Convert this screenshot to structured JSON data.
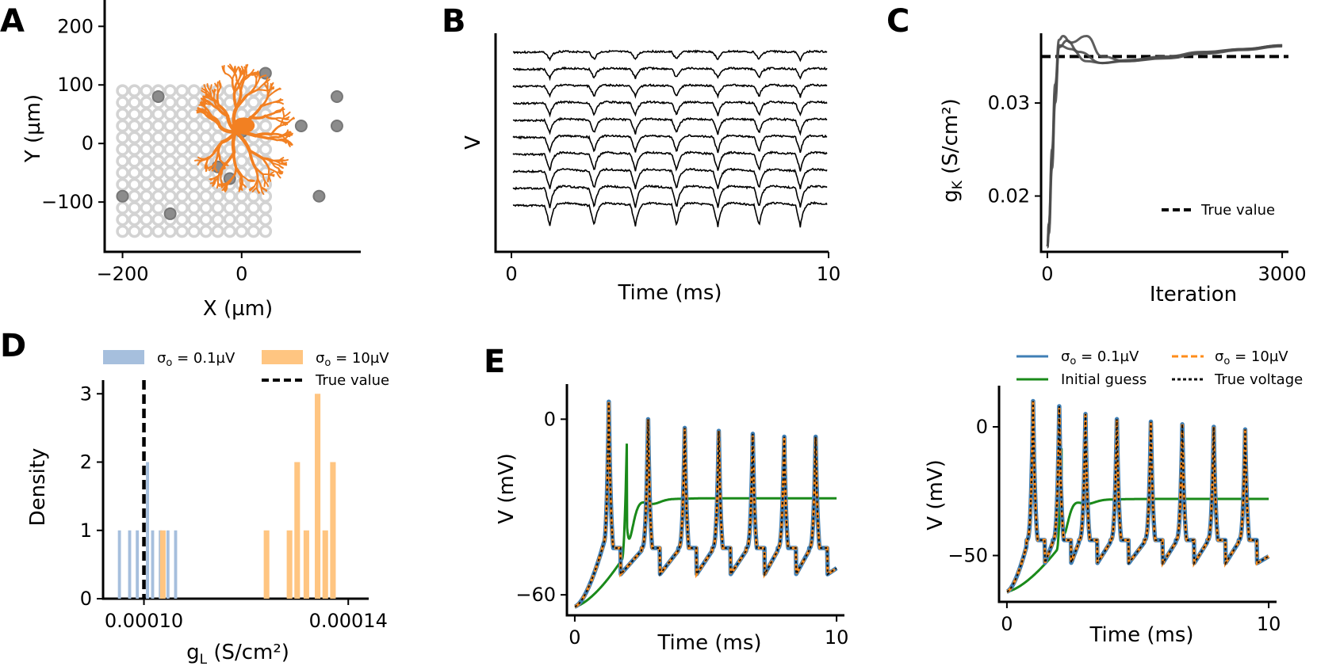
{
  "panel_letters": {
    "A": "A",
    "B": "B",
    "C": "C",
    "D": "D",
    "E": "E"
  },
  "chart_data": [
    {
      "panel": "A",
      "type": "scatter",
      "xlabel": "X (µm)",
      "ylabel": "Y (µm)",
      "xlim": [
        -230,
        200
      ],
      "ylim": [
        -185,
        245
      ],
      "xticks": [
        -200,
        0
      ],
      "xtick_labels": [
        "−200",
        "0"
      ],
      "yticks": [
        -100,
        0,
        100,
        200
      ],
      "ytick_labels": [
        "−100",
        "0",
        "100",
        "200"
      ],
      "grid": {
        "x_start": -200,
        "x_step": 20,
        "nx": 13,
        "y_start": -150,
        "y_step": 20,
        "ny": 13
      },
      "recording_sites": [
        [
          -140,
          80
        ],
        [
          40,
          120
        ],
        [
          160,
          80
        ],
        [
          100,
          30
        ],
        [
          160,
          30
        ],
        [
          -200,
          -90
        ],
        [
          -120,
          -120
        ],
        [
          -20,
          -60
        ],
        [
          130,
          -90
        ],
        [
          -40,
          -40
        ],
        [
          0,
          20
        ]
      ],
      "colors": {
        "grid_site": "#d3d3d3",
        "recording_site": "#8c8c8c",
        "neuron": "#f28022"
      },
      "neuron": "orange reconstructed dendritic morphology centered near the origin"
    },
    {
      "panel": "B",
      "type": "line",
      "xlabel": "Time (ms)",
      "ylabel": "V",
      "xlim": [
        0,
        10
      ],
      "xticks": [
        0,
        10
      ],
      "xtick_labels": [
        "0",
        "10"
      ],
      "n_traces": 10,
      "spike_times": [
        1.2,
        2.6,
        3.9,
        5.2,
        6.5,
        7.8,
        9.1
      ],
      "colors": {
        "trace": "#000000"
      }
    },
    {
      "panel": "C",
      "type": "line",
      "xlabel": "Iteration",
      "ylabel": "gK (S/cm²)",
      "ylabel_main": "g",
      "ylabel_sub": "K",
      "ylabel_unit": " (S/cm²)",
      "xlim": [
        -80,
        3080
      ],
      "ylim": [
        0.014,
        0.0375
      ],
      "xticks": [
        0,
        3000
      ],
      "xtick_labels": [
        "0",
        "3000"
      ],
      "yticks": [
        0.02,
        0.03
      ],
      "ytick_labels": [
        "0.02",
        "0.03"
      ],
      "true_value": 0.035,
      "legend": [
        "True value"
      ],
      "legend_placement": "lower-right",
      "series": [
        {
          "x": [
            0,
            20,
            60,
            100,
            150,
            250,
            400,
            700,
            1000,
            1500,
            2000,
            2500,
            3000
          ],
          "y": [
            0.0145,
            0.017,
            0.024,
            0.031,
            0.036,
            0.0367,
            0.0355,
            0.0343,
            0.0345,
            0.0348,
            0.0353,
            0.0357,
            0.0361
          ]
        },
        {
          "x": [
            0,
            20,
            60,
            100,
            150,
            200,
            300,
            500,
            700,
            1000,
            1500,
            2000,
            2500,
            3000
          ],
          "y": [
            0.0145,
            0.017,
            0.025,
            0.032,
            0.0368,
            0.0372,
            0.0365,
            0.0372,
            0.035,
            0.0345,
            0.0349,
            0.0354,
            0.0358,
            0.0362
          ]
        },
        {
          "x": [
            0,
            20,
            60,
            100,
            150,
            300,
            500,
            700,
            1000,
            1500,
            2000,
            2500,
            3000
          ],
          "y": [
            0.0145,
            0.016,
            0.023,
            0.03,
            0.0362,
            0.0358,
            0.0345,
            0.0343,
            0.0346,
            0.035,
            0.0355,
            0.0358,
            0.0362
          ]
        }
      ],
      "colors": {
        "series": "#4d4d4d",
        "true": "#000000"
      }
    },
    {
      "panel": "D",
      "type": "bar",
      "xlabel": "gL (S/cm²)",
      "xlabel_main": "g",
      "xlabel_sub": "L",
      "xlabel_unit": " (S/cm²)",
      "ylabel": "Density",
      "xlim": [
        9.2e-05,
        0.000144
      ],
      "ylim": [
        0,
        3.2
      ],
      "xticks": [
        0.0001,
        0.00014
      ],
      "xtick_labels": [
        "0.00010",
        "0.00014"
      ],
      "yticks": [
        0,
        1,
        2,
        3
      ],
      "ytick_labels": [
        "0",
        "1",
        "2",
        "3"
      ],
      "true_value": 0.0001,
      "legend": [
        {
          "main": "σ",
          "sub": "o",
          "rest": " = 0.1µV"
        },
        {
          "main": "σ",
          "sub": "o",
          "rest": " = 10µV"
        },
        {
          "main": "True value",
          "sub": "",
          "rest": ""
        }
      ],
      "legend_placement": "top",
      "series": [
        {
          "name": "σo = 0.1µV",
          "bars": [
            [
              9.52e-05,
              1
            ],
            [
              9.72e-05,
              1
            ],
            [
              9.87e-05,
              1
            ],
            [
              0.0001007,
              2
            ],
            [
              0.0001017,
              1
            ],
            [
              0.0001032,
              1
            ],
            [
              0.0001047,
              1
            ],
            [
              0.0001062,
              1
            ]
          ],
          "bar_width": 6e-07
        },
        {
          "name": "σo = 10µV",
          "bars": [
            [
              0.0001037,
              1
            ],
            [
              0.000124,
              1
            ],
            [
              0.0001285,
              1
            ],
            [
              0.00013,
              2
            ],
            [
              0.0001318,
              1
            ],
            [
              0.000134,
              3
            ],
            [
              0.0001355,
              1
            ],
            [
              0.000137,
              2
            ]
          ],
          "bar_width": 1.1e-06
        }
      ],
      "colors": {
        "small_noise": "#a6bfdd",
        "large_noise": "#ffc581",
        "true": "#000000"
      }
    },
    {
      "panel": "E-left",
      "type": "line",
      "xlabel": "Time (ms)",
      "ylabel": "V (mV)",
      "xlim": [
        -0.3,
        10.3
      ],
      "ylim": [
        -67,
        12
      ],
      "xticks": [
        0,
        10
      ],
      "xtick_labels": [
        "0",
        "10"
      ],
      "yticks": [
        -60,
        0
      ],
      "ytick_labels": [
        "−60",
        "0"
      ],
      "spike_times": [
        1.3,
        2.8,
        4.2,
        5.5,
        6.8,
        8.0,
        9.2
      ],
      "spike_peaks": [
        6,
        0,
        -3,
        -4,
        -5,
        -6,
        -6
      ],
      "initial_guess_spike": 2.0,
      "initial_guess_steady": -27,
      "colors": {
        "sigma_small": "#3f7fb5",
        "sigma_large": "#ff8c1a",
        "initial": "#1a8a1a",
        "true": "#111111"
      }
    },
    {
      "panel": "E-right",
      "type": "line",
      "xlabel": "Time (ms)",
      "ylabel": "V (mV)",
      "xlim": [
        -0.3,
        10.3
      ],
      "ylim": [
        -68,
        16
      ],
      "xticks": [
        0,
        10
      ],
      "xtick_labels": [
        "0",
        "10"
      ],
      "yticks": [
        -50,
        0
      ],
      "ytick_labels": [
        "−50",
        "0"
      ],
      "spike_times": [
        1.0,
        2.0,
        3.0,
        4.2,
        5.5,
        6.7,
        7.9,
        9.1
      ],
      "spike_peaks": [
        10,
        8,
        5,
        3,
        2,
        1,
        0,
        -1
      ],
      "initial_guess_spike": 2.1,
      "initial_guess_steady": -28,
      "legend": [
        {
          "main": "σ",
          "sub": "o",
          "rest": " = 0.1µV"
        },
        {
          "main": "σ",
          "sub": "o",
          "rest": " = 10µV"
        },
        {
          "main": "Initial guess",
          "sub": "",
          "rest": ""
        },
        {
          "main": "True voltage",
          "sub": "",
          "rest": ""
        }
      ],
      "legend_placement": "top",
      "colors": {
        "sigma_small": "#3f7fb5",
        "sigma_large": "#ff8c1a",
        "initial": "#1a8a1a",
        "true": "#111111"
      }
    }
  ]
}
